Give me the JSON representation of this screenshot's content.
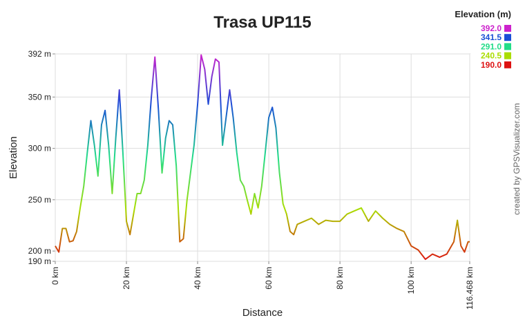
{
  "chart_data": {
    "type": "line",
    "title": "Trasa UP115",
    "x_label": "Distance",
    "y_label": "Elevation",
    "watermark": "created by GPSVisualizer.com",
    "legend_title": "Elevation (m)",
    "color_scale": [
      {
        "value": 392.0,
        "label": "392.0",
        "color": "#cc22cc"
      },
      {
        "value": 341.5,
        "label": "341.5",
        "color": "#1a4fd6"
      },
      {
        "value": 291.0,
        "label": "291.0",
        "color": "#22dd88"
      },
      {
        "value": 240.5,
        "label": "240.5",
        "color": "#aadd00"
      },
      {
        "value": 190.0,
        "label": "190.0",
        "color": "#dd1111"
      }
    ],
    "x": [
      0,
      1,
      2,
      3,
      4,
      5,
      6,
      7,
      8,
      9,
      10,
      11,
      12,
      13,
      14,
      15,
      16,
      17,
      18,
      19,
      20,
      21,
      22,
      23,
      24,
      25,
      26,
      27,
      28,
      29,
      30,
      31,
      32,
      33,
      34,
      35,
      36,
      37,
      38,
      39,
      40,
      41,
      42,
      43,
      44,
      45,
      46,
      47,
      48,
      49,
      50,
      51,
      52,
      53,
      54,
      55,
      56,
      57,
      58,
      59,
      60,
      61,
      62,
      63,
      64,
      65,
      66,
      67,
      68,
      70,
      72,
      74,
      76,
      78,
      80,
      82,
      84,
      86,
      88,
      90,
      92,
      94,
      96,
      98,
      100,
      102,
      104,
      106,
      108,
      110,
      112,
      113,
      114,
      115,
      116,
      116.468
    ],
    "values": [
      205,
      199,
      222,
      222,
      209,
      210,
      219,
      242,
      263,
      296,
      327,
      303,
      273,
      323,
      337,
      303,
      256,
      310,
      357,
      296,
      229,
      216,
      236,
      256,
      256,
      269,
      303,
      350,
      389,
      337,
      276,
      310,
      327,
      323,
      283,
      209,
      212,
      249,
      276,
      303,
      343,
      391,
      377,
      343,
      370,
      387,
      384,
      303,
      330,
      357,
      330,
      296,
      269,
      263,
      249,
      236,
      256,
      242,
      263,
      296,
      330,
      340,
      320,
      276,
      246,
      236,
      219,
      216,
      226,
      229,
      232,
      226,
      230,
      229,
      229,
      236,
      239,
      242,
      229,
      239,
      232,
      226,
      222,
      219,
      205,
      201,
      192,
      197,
      194,
      197,
      209,
      230,
      205,
      199,
      209,
      209
    ],
    "xlim": [
      0,
      116.468
    ],
    "ylim": [
      190,
      392
    ],
    "xticks": [
      {
        "value": 0,
        "label": "0 km"
      },
      {
        "value": 20,
        "label": "20 km"
      },
      {
        "value": 40,
        "label": "40 km"
      },
      {
        "value": 60,
        "label": "60 km"
      },
      {
        "value": 80,
        "label": "80 km"
      },
      {
        "value": 100,
        "label": "100 km"
      },
      {
        "value": 116.468,
        "label": "116.468 km"
      }
    ],
    "yticks": [
      {
        "value": 190,
        "label": "190 m"
      },
      {
        "value": 200,
        "label": "200 m"
      },
      {
        "value": 250,
        "label": "250 m"
      },
      {
        "value": 300,
        "label": "300 m"
      },
      {
        "value": 350,
        "label": "350 m"
      },
      {
        "value": 392,
        "label": "392 m"
      }
    ],
    "grid": true
  }
}
